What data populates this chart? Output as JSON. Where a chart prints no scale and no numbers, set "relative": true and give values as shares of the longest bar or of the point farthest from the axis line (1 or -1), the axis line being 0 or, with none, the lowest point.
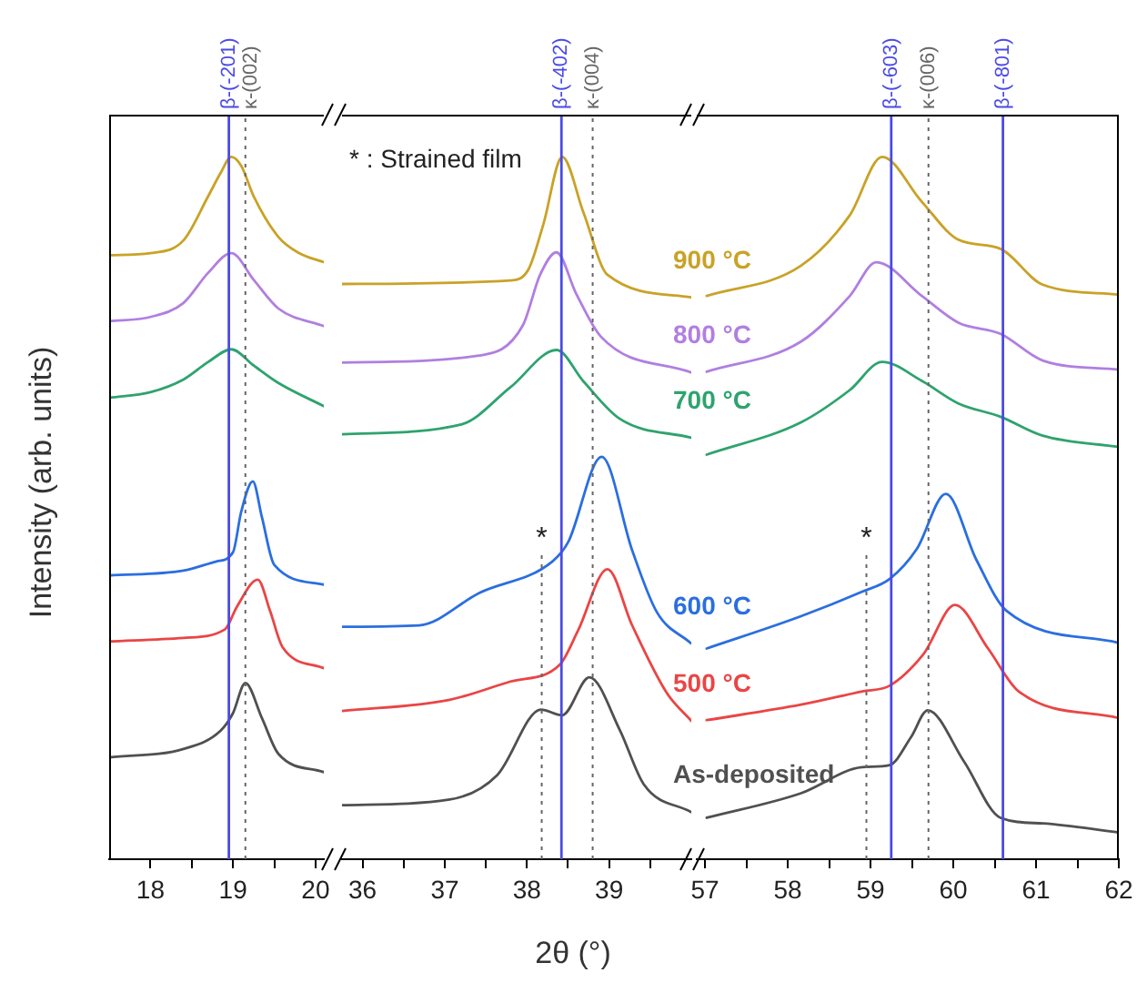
{
  "chart_data": [
    {
      "type": "line",
      "ylabel": "Intensity (arb. units)",
      "relative": true,
      "marker": "none",
      "legend": false,
      "xlim": [
        17.5,
        20.1
      ],
      "xticks": [
        18,
        19,
        20,
        {
          "value": 18.5,
          "label": null
        },
        {
          "value": 19.5,
          "label": null
        }
      ],
      "ref_lines": [
        {
          "axis": "x",
          "value": 18.95,
          "label": "β-(-201)",
          "color": "#4a4ae6",
          "line_style": "solid"
        },
        {
          "axis": "x",
          "value": 19.15,
          "label": "κ-(002)",
          "color": "#666666",
          "line_style": "dotted"
        }
      ],
      "series": [
        {
          "color": "#c9a227",
          "x": [
            17.5,
            18.0,
            18.4,
            18.7,
            18.85,
            18.98,
            19.1,
            19.25,
            19.55,
            19.8,
            20.1
          ],
          "values": [
            0.86,
            0.863,
            0.881,
            0.944,
            0.977,
            1,
            0.987,
            0.944,
            0.886,
            0.863,
            0.85
          ]
        },
        {
          "color": "#b07fe0",
          "x": [
            17.5,
            18.0,
            18.4,
            18.7,
            18.98,
            19.25,
            19.55,
            20.1
          ],
          "values": [
            0.766,
            0.772,
            0.792,
            0.835,
            0.863,
            0.825,
            0.784,
            0.759
          ]
        },
        {
          "color": "#2ea36e",
          "x": [
            17.5,
            18.0,
            18.4,
            18.7,
            18.98,
            19.25,
            19.55,
            20.1
          ],
          "values": [
            0.657,
            0.665,
            0.683,
            0.708,
            0.726,
            0.703,
            0.678,
            0.645
          ]
        },
        {
          "color": "#2b6ee0",
          "x": [
            17.5,
            18.4,
            18.8,
            19.0,
            19.1,
            19.24,
            19.35,
            19.5,
            20.1
          ],
          "values": [
            0.404,
            0.411,
            0.424,
            0.437,
            0.495,
            0.538,
            0.487,
            0.419,
            0.391
          ]
        },
        {
          "color": "#ea4545",
          "x": [
            17.5,
            18.4,
            18.9,
            19.05,
            19.3,
            19.45,
            19.6,
            20.1
          ],
          "values": [
            0.31,
            0.315,
            0.327,
            0.36,
            0.398,
            0.353,
            0.302,
            0.272
          ]
        },
        {
          "color": "#505050",
          "x": [
            17.5,
            18.4,
            18.85,
            19.0,
            19.15,
            19.35,
            19.55,
            20.1
          ],
          "values": [
            0.145,
            0.157,
            0.183,
            0.208,
            0.251,
            0.201,
            0.15,
            0.124
          ]
        }
      ]
    },
    {
      "type": "line",
      "xlabel": "2θ (°)",
      "relative": true,
      "marker": "none",
      "legend": false,
      "xlim": [
        35.75,
        40
      ],
      "xticks": [
        36,
        37,
        38,
        39,
        {
          "value": 36.5,
          "label": null
        },
        {
          "value": 37.5,
          "label": null
        },
        {
          "value": 38.5,
          "label": null
        },
        {
          "value": 39.5,
          "label": null
        }
      ],
      "annotations": [
        "* : Strained film",
        "*"
      ],
      "ref_lines": [
        {
          "axis": "x",
          "value": 38.18,
          "label": null,
          "color": "#666666",
          "line_style": "dotted"
        },
        {
          "axis": "x",
          "value": 38.42,
          "label": "β-(-402)",
          "color": "#4a4ae6",
          "line_style": "solid"
        },
        {
          "axis": "x",
          "value": 38.8,
          "label": "κ-(004)",
          "color": "#666666",
          "line_style": "dotted"
        }
      ],
      "series": [
        {
          "name": "900 °C",
          "color": "#c9a227",
          "x": [
            35.75,
            37.8,
            38.02,
            38.2,
            38.43,
            38.69,
            38.98,
            40
          ],
          "values": [
            0.819,
            0.824,
            0.84,
            0.904,
            1,
            0.92,
            0.832,
            0.8
          ]
        },
        {
          "name": "800 °C",
          "color": "#b07fe0",
          "x": [
            35.75,
            37.42,
            37.95,
            38.16,
            38.36,
            38.6,
            38.9,
            40
          ],
          "values": [
            0.707,
            0.717,
            0.76,
            0.832,
            0.864,
            0.805,
            0.744,
            0.693
          ]
        },
        {
          "name": "700 °C",
          "color": "#2ea36e",
          "x": [
            35.75,
            37.2,
            37.8,
            38.36,
            38.69,
            39.13,
            40
          ],
          "values": [
            0.605,
            0.619,
            0.672,
            0.725,
            0.68,
            0.627,
            0.6
          ]
        },
        {
          "name": "600 °C",
          "color": "#2b6ee0",
          "x": [
            35.75,
            36.69,
            37.42,
            38.31,
            38.5,
            38.91,
            39.28,
            39.58,
            40
          ],
          "values": [
            0.331,
            0.333,
            0.379,
            0.424,
            0.451,
            0.573,
            0.44,
            0.352,
            0.307
          ]
        },
        {
          "name": "500 °C",
          "color": "#ea4545",
          "x": [
            35.75,
            37.06,
            37.8,
            38.4,
            38.62,
            38.98,
            39.28,
            39.7,
            40
          ],
          "values": [
            0.211,
            0.227,
            0.253,
            0.277,
            0.325,
            0.413,
            0.333,
            0.237,
            0.197
          ]
        },
        {
          "name": "As-deposited",
          "color": "#505050",
          "x": [
            35.75,
            37.06,
            37.64,
            38.17,
            38.43,
            38.76,
            39.13,
            39.42,
            40
          ],
          "values": [
            0.077,
            0.085,
            0.12,
            0.213,
            0.205,
            0.259,
            0.184,
            0.107,
            0.067
          ]
        }
      ]
    },
    {
      "type": "line",
      "relative": true,
      "marker": "none",
      "legend": false,
      "xlim": [
        56.9,
        62
      ],
      "xticks": [
        57,
        58,
        59,
        60,
        61,
        62,
        {
          "value": 57.5,
          "label": null
        },
        {
          "value": 58.5,
          "label": null
        },
        {
          "value": 59.5,
          "label": null
        },
        {
          "value": 60.5,
          "label": null
        },
        {
          "value": 61.5,
          "label": null
        }
      ],
      "annotations": [
        "*"
      ],
      "ref_lines": [
        {
          "axis": "x",
          "value": 58.95,
          "label": null,
          "color": "#666666",
          "line_style": "dotted"
        },
        {
          "axis": "x",
          "value": 59.25,
          "label": "β-(-603)",
          "color": "#4a4ae6",
          "line_style": "solid"
        },
        {
          "axis": "x",
          "value": 59.7,
          "label": "κ-(006)",
          "color": "#666666",
          "line_style": "dotted"
        },
        {
          "axis": "x",
          "value": 60.6,
          "label": "β-(-801)",
          "color": "#4a4ae6",
          "line_style": "solid"
        }
      ],
      "series": [
        {
          "color": "#c9a227",
          "x": [
            57.02,
            58.16,
            58.75,
            59.14,
            59.62,
            60.06,
            60.57,
            61.08,
            62
          ],
          "values": [
            0.802,
            0.845,
            0.917,
            1,
            0.936,
            0.882,
            0.869,
            0.818,
            0.804
          ]
        },
        {
          "color": "#b07fe0",
          "x": [
            57.02,
            58.16,
            58.75,
            59.07,
            59.62,
            60.06,
            60.57,
            61.08,
            62
          ],
          "values": [
            0.694,
            0.737,
            0.802,
            0.85,
            0.802,
            0.764,
            0.748,
            0.71,
            0.697
          ]
        },
        {
          "color": "#2ea36e",
          "x": [
            57.02,
            58.16,
            58.75,
            59.14,
            59.62,
            60.06,
            60.57,
            61.08,
            62
          ],
          "values": [
            0.576,
            0.622,
            0.668,
            0.708,
            0.681,
            0.649,
            0.63,
            0.603,
            0.587
          ]
        },
        {
          "color": "#2b6ee0",
          "x": [
            57.02,
            58.16,
            58.9,
            59.23,
            59.56,
            59.91,
            60.28,
            60.64,
            62
          ],
          "values": [
            0.3,
            0.346,
            0.381,
            0.399,
            0.442,
            0.52,
            0.426,
            0.354,
            0.308
          ]
        },
        {
          "color": "#ea4545",
          "x": [
            57.02,
            58.16,
            58.9,
            59.23,
            59.64,
            60.02,
            60.42,
            60.79,
            62
          ],
          "values": [
            0.198,
            0.22,
            0.239,
            0.247,
            0.292,
            0.362,
            0.3,
            0.239,
            0.201
          ]
        },
        {
          "color": "#505050",
          "x": [
            57.02,
            58.16,
            58.9,
            59.23,
            59.49,
            59.69,
            60.13,
            60.57,
            61.08,
            62
          ],
          "values": [
            0.059,
            0.094,
            0.131,
            0.134,
            0.174,
            0.212,
            0.139,
            0.059,
            0.051,
            0.038
          ]
        }
      ]
    }
  ]
}
